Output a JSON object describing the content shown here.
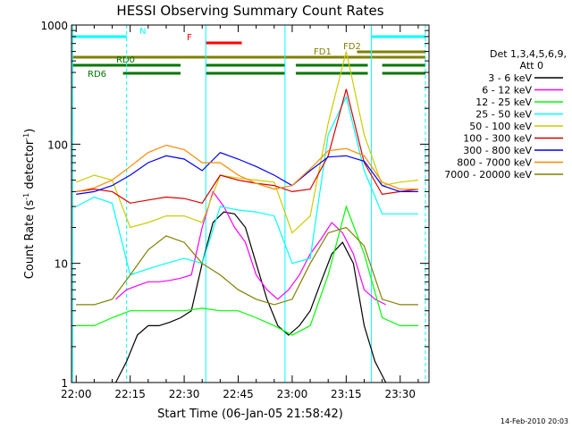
{
  "chart_data": {
    "type": "line",
    "title": "HESSI Observing Summary Count Rates",
    "xlabel": "Start Time (06-Jan-05 21:58:42)",
    "ylabel": "Count Rate (s",
    "ylabel_sup": "-1",
    "ylabel_tail": " detector",
    "ylabel_sup2": "-1",
    "ylabel_end": ")",
    "yscale": "log",
    "ylim": [
      1,
      1000
    ],
    "xlim": [
      "21:58:42",
      "23:38:00"
    ],
    "xticks": [
      "22:00",
      "22:15",
      "22:30",
      "22:45",
      "23:00",
      "23:15",
      "23:30"
    ],
    "yticks": [
      "1",
      "10",
      "100",
      "1000"
    ],
    "legend_placement": "right",
    "legend_header": [
      "Det 1,3,4,5,6,9,",
      "Att 0"
    ],
    "series": [
      {
        "name": "3 - 6 keV",
        "color": "#000000",
        "x": [
          "22:11",
          "22:14",
          "22:17",
          "22:20",
          "22:23",
          "22:26",
          "22:29",
          "22:32",
          "22:35",
          "22:38",
          "22:41",
          "22:44",
          "22:47",
          "22:50",
          "22:53",
          "22:56",
          "22:59",
          "23:02",
          "23:05",
          "23:08",
          "23:11",
          "23:14",
          "23:17",
          "23:20",
          "23:23",
          "23:26"
        ],
        "values": [
          1.0,
          1.5,
          2.5,
          3.0,
          3.0,
          3.2,
          3.5,
          4.0,
          10,
          22,
          27,
          26,
          20,
          10,
          5,
          3,
          2.5,
          3,
          4,
          7,
          12,
          15,
          10,
          3,
          1.5,
          1.0
        ]
      },
      {
        "name": "6 - 12 keV",
        "color": "#ff00ff",
        "x": [
          "22:11",
          "22:14",
          "22:17",
          "22:20",
          "22:23",
          "22:26",
          "22:29",
          "22:32",
          "22:35",
          "22:38",
          "22:41",
          "22:44",
          "22:47",
          "22:50",
          "22:53",
          "22:56",
          "22:59",
          "23:02",
          "23:05",
          "23:08",
          "23:11",
          "23:14",
          "23:17",
          "23:20",
          "23:23",
          "23:26"
        ],
        "values": [
          5,
          6,
          6.5,
          7,
          7,
          7.2,
          7.5,
          8,
          20,
          40,
          30,
          20,
          15,
          8,
          6,
          5,
          6,
          8,
          12,
          16,
          22,
          18,
          12,
          6,
          5,
          4.5
        ]
      },
      {
        "name": "12 - 25 keV",
        "color": "#00ff00",
        "x": [
          "22:00",
          "22:05",
          "22:10",
          "22:15",
          "22:20",
          "22:25",
          "22:30",
          "22:35",
          "22:40",
          "22:45",
          "22:50",
          "22:55",
          "23:00",
          "23:05",
          "23:10",
          "23:15",
          "23:20",
          "23:25",
          "23:30",
          "23:35"
        ],
        "values": [
          3,
          3,
          3.5,
          4,
          4,
          4,
          4,
          4.2,
          4,
          4,
          3.5,
          3,
          2.5,
          3,
          8,
          30,
          12,
          3.5,
          3,
          3
        ]
      },
      {
        "name": "25 - 50 keV",
        "color": "#00ffff",
        "x": [
          "22:00",
          "22:05",
          "22:10",
          "22:15",
          "22:20",
          "22:25",
          "22:30",
          "22:35",
          "22:40",
          "22:45",
          "22:50",
          "22:55",
          "23:00",
          "23:05",
          "23:10",
          "23:15",
          "23:20",
          "23:25",
          "23:30",
          "23:35"
        ],
        "values": [
          30,
          36,
          32,
          8,
          9,
          10,
          11,
          10,
          30,
          28,
          27,
          25,
          10,
          11,
          120,
          250,
          60,
          26,
          26,
          26
        ]
      },
      {
        "name": "50 - 100 keV",
        "color": "#cccc00",
        "x": [
          "22:00",
          "22:05",
          "22:10",
          "22:15",
          "22:20",
          "22:25",
          "22:30",
          "22:35",
          "22:40",
          "22:45",
          "22:50",
          "22:55",
          "23:00",
          "23:05",
          "23:10",
          "23:15",
          "23:20",
          "23:25",
          "23:30",
          "23:35"
        ],
        "values": [
          48,
          55,
          50,
          20,
          22,
          25,
          25,
          22,
          55,
          52,
          50,
          48,
          18,
          25,
          150,
          600,
          120,
          45,
          48,
          50
        ]
      },
      {
        "name": "100 - 300 keV",
        "color": "#dd0000",
        "x": [
          "22:00",
          "22:05",
          "22:10",
          "22:15",
          "22:20",
          "22:25",
          "22:30",
          "22:35",
          "22:40",
          "22:45",
          "22:50",
          "22:55",
          "23:00",
          "23:05",
          "23:10",
          "23:15",
          "23:20",
          "23:25",
          "23:30",
          "23:35"
        ],
        "values": [
          40,
          42,
          40,
          32,
          34,
          36,
          35,
          32,
          55,
          50,
          47,
          45,
          40,
          42,
          80,
          290,
          70,
          38,
          40,
          42
        ]
      },
      {
        "name": "300 - 800 keV",
        "color": "#0000ff",
        "x": [
          "22:00",
          "22:05",
          "22:10",
          "22:15",
          "22:20",
          "22:25",
          "22:30",
          "22:35",
          "22:40",
          "22:45",
          "22:50",
          "22:55",
          "23:00",
          "23:05",
          "23:10",
          "23:15",
          "23:20",
          "23:25",
          "23:30",
          "23:35"
        ],
        "values": [
          38,
          40,
          45,
          55,
          70,
          80,
          75,
          60,
          85,
          75,
          65,
          55,
          45,
          60,
          78,
          80,
          72,
          45,
          40,
          40
        ]
      },
      {
        "name": "800 - 7000 keV",
        "color": "#ff8800",
        "x": [
          "22:00",
          "22:05",
          "22:10",
          "22:15",
          "22:20",
          "22:25",
          "22:30",
          "22:35",
          "22:40",
          "22:45",
          "22:50",
          "22:55",
          "23:00",
          "23:05",
          "23:10",
          "23:15",
          "23:20",
          "23:25",
          "23:30",
          "23:35"
        ],
        "values": [
          40,
          43,
          50,
          65,
          85,
          98,
          90,
          70,
          70,
          55,
          47,
          42,
          45,
          62,
          88,
          92,
          80,
          48,
          42,
          42
        ]
      },
      {
        "name": "7000 - 20000 keV",
        "color": "#808000",
        "x": [
          "22:00",
          "22:05",
          "22:10",
          "22:15",
          "22:20",
          "22:25",
          "22:30",
          "22:35",
          "22:40",
          "22:45",
          "22:50",
          "22:55",
          "23:00",
          "23:05",
          "23:10",
          "23:15",
          "23:20",
          "23:25",
          "23:30",
          "23:35"
        ],
        "values": [
          4.5,
          4.5,
          5,
          8,
          13,
          17,
          15,
          10,
          8,
          6,
          5,
          4.5,
          5,
          10,
          18,
          20,
          14,
          5,
          4.5,
          4.5
        ]
      }
    ],
    "flag_bars": [
      {
        "label": "N",
        "color": "#00ffff",
        "segments": [
          [
            "21:59",
            "22:14"
          ],
          [
            "23:22",
            "23:37"
          ]
        ]
      },
      {
        "label": "F",
        "color": "#ff0000",
        "segments": [
          [
            "22:36",
            "22:46"
          ]
        ]
      },
      {
        "label": "FD1",
        "color": "#808000",
        "segments": [
          [
            "21:59",
            "23:37"
          ]
        ]
      },
      {
        "label": "FD2",
        "color": "#808000",
        "segments": [
          [
            "23:18",
            "23:37"
          ]
        ]
      },
      {
        "label": "RD0",
        "color": "#007700",
        "segments": [
          [
            "21:59",
            "22:29"
          ],
          [
            "22:36",
            "22:58"
          ],
          [
            "23:01",
            "23:21"
          ],
          [
            "23:25",
            "23:37"
          ]
        ]
      },
      {
        "label": "RD6",
        "color": "#007700",
        "segments": [
          [
            "22:13",
            "22:29"
          ],
          [
            "22:36",
            "22:58"
          ],
          [
            "23:01",
            "23:21"
          ],
          [
            "23:25",
            "23:37"
          ]
        ]
      }
    ],
    "vlines": [
      {
        "x": "21:59",
        "style": "solid",
        "color": "#00ffff"
      },
      {
        "x": "22:14",
        "style": "dashed",
        "color": "#00ffff"
      },
      {
        "x": "22:36",
        "style": "solid",
        "color": "#00ffff"
      },
      {
        "x": "22:58",
        "style": "solid",
        "color": "#00ffff"
      },
      {
        "x": "23:22",
        "style": "solid",
        "color": "#00ffff"
      },
      {
        "x": "23:37",
        "style": "dashed",
        "color": "#00ffff"
      }
    ]
  },
  "footer": {
    "date": "14-Feb-2010 20:03"
  }
}
